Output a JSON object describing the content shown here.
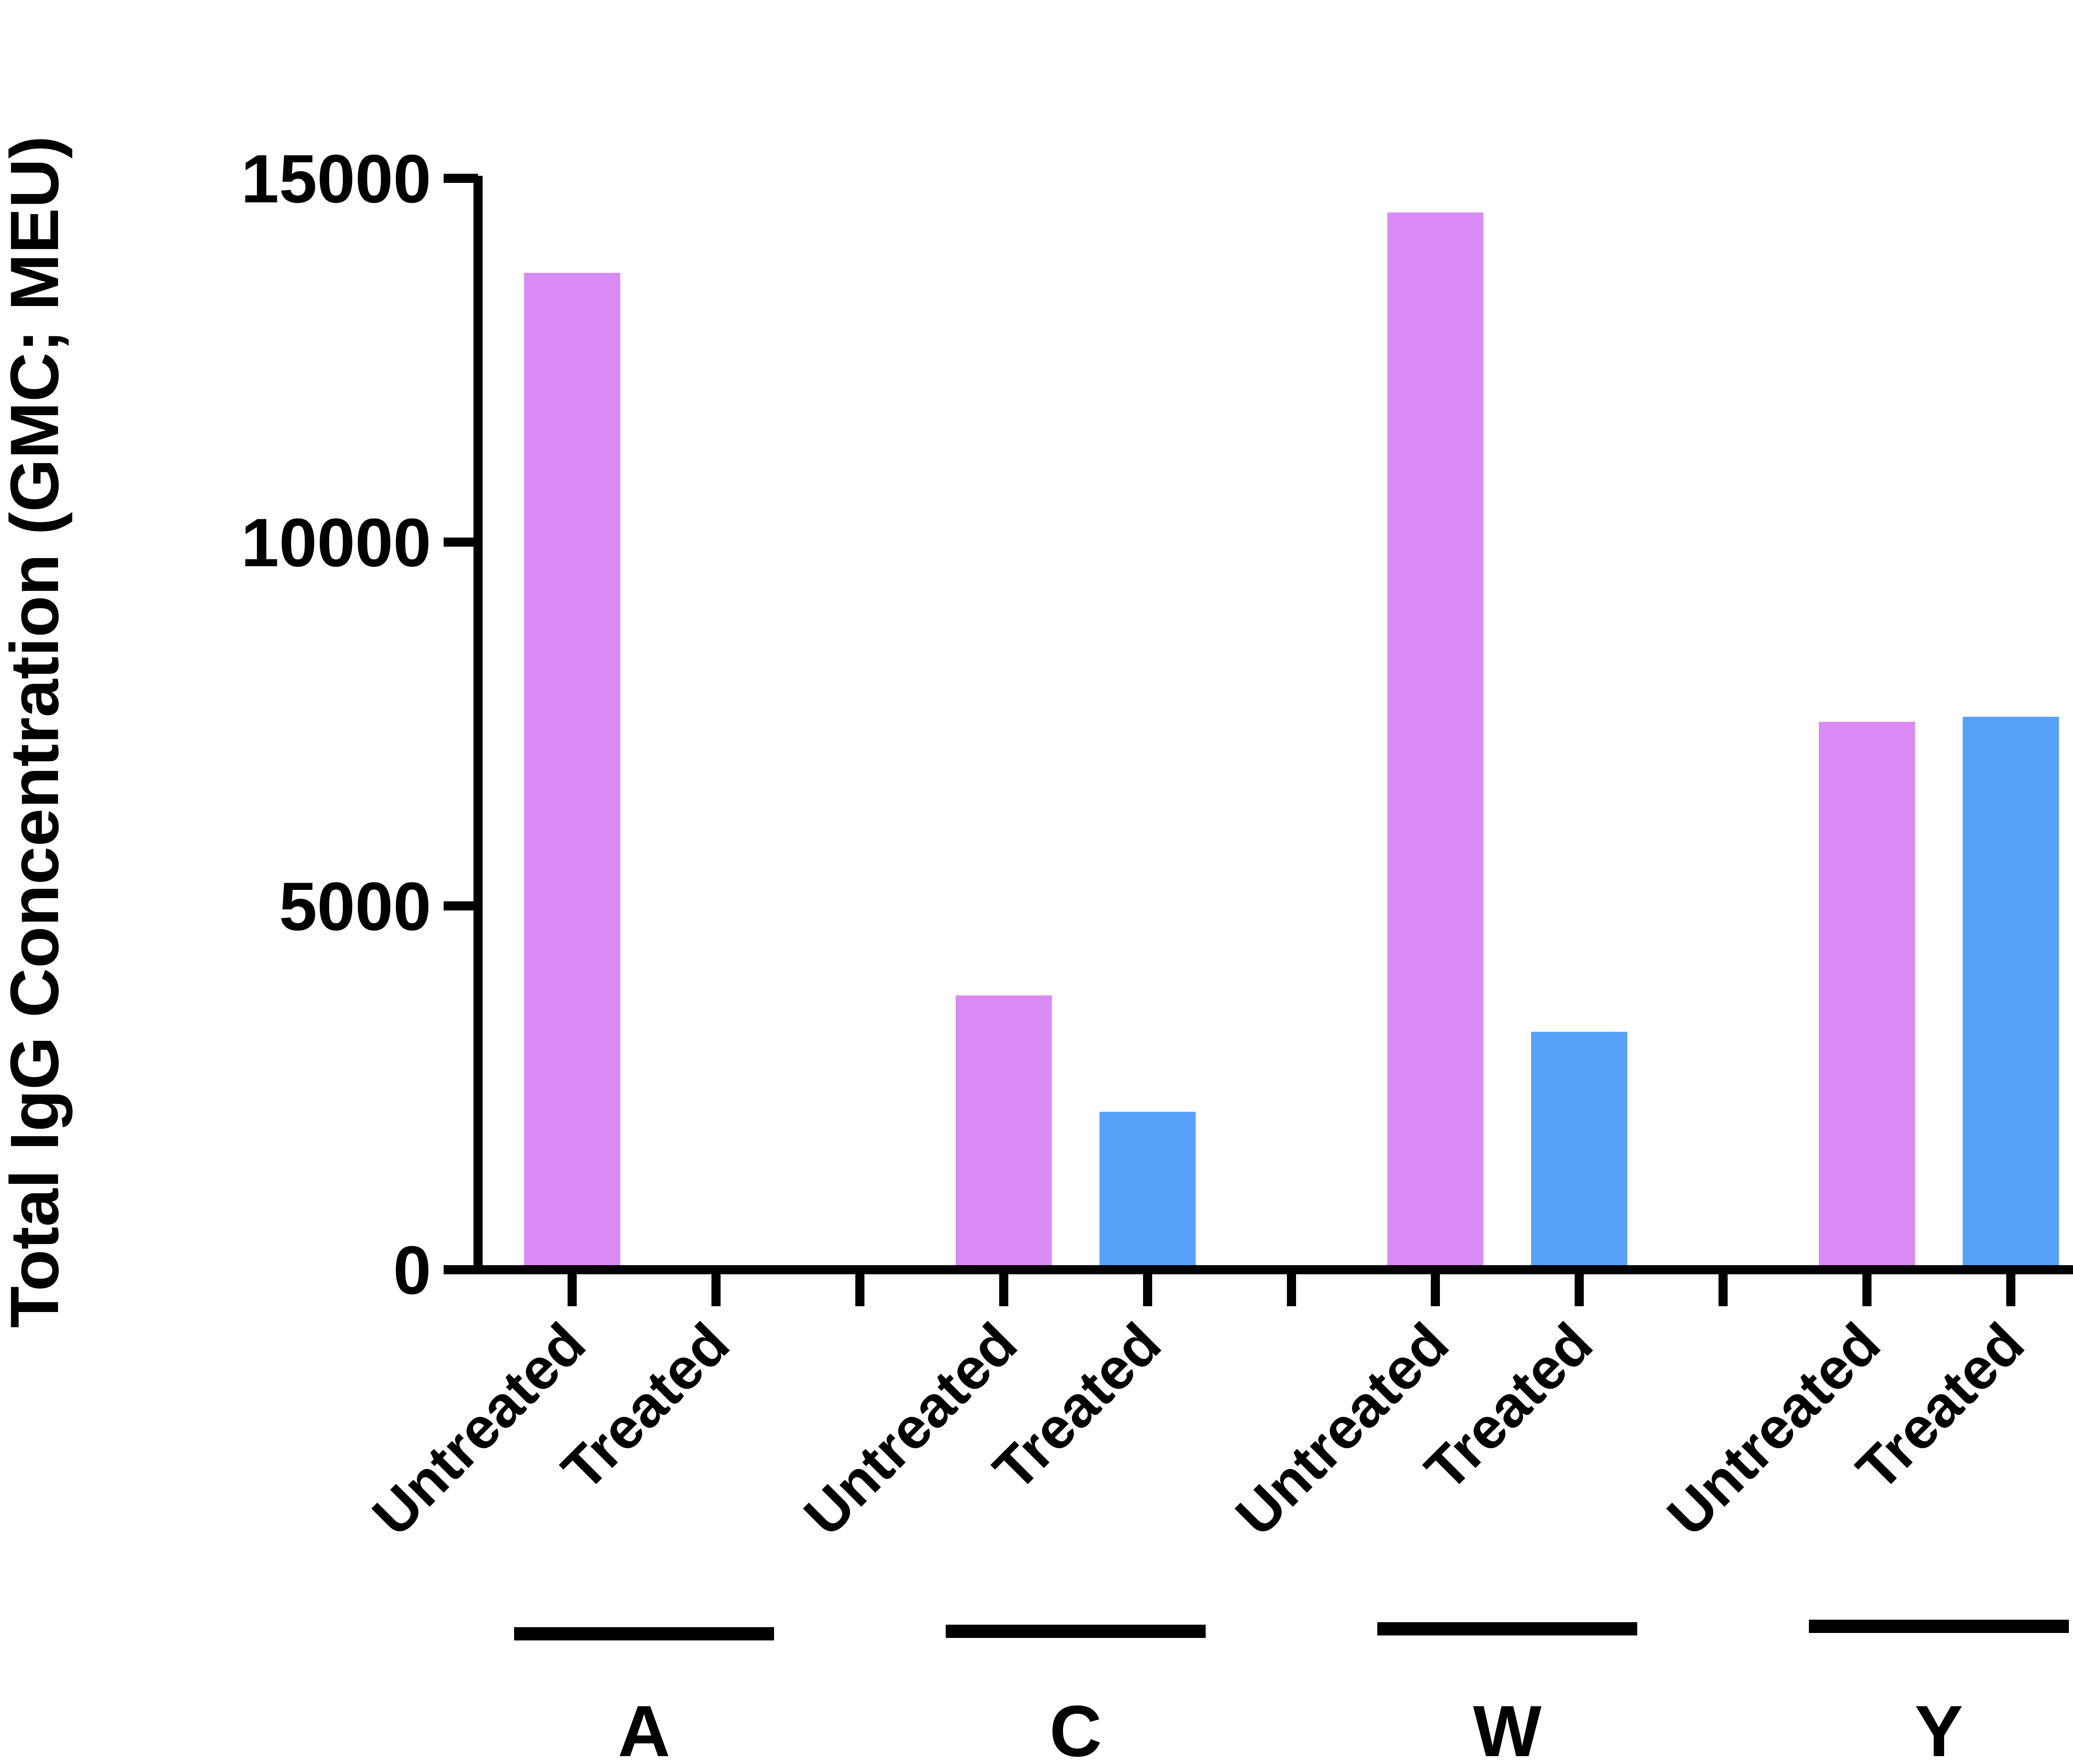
{
  "chart_data": {
    "type": "bar",
    "ylabel": "Total IgG Concentration (GMC; MEU)",
    "ylim": [
      0,
      15000
    ],
    "yticks": [
      0,
      5000,
      10000,
      15000
    ],
    "ytick_labels": [
      "0",
      "5000",
      "10000",
      "15000"
    ],
    "groups": [
      {
        "name": "A",
        "bars": [
          {
            "label": "Untreated",
            "value": 13700
          },
          {
            "label": "Treated",
            "value": 0
          }
        ]
      },
      {
        "name": "C",
        "bars": [
          {
            "label": "Untreated",
            "value": 3770
          },
          {
            "label": "Treated",
            "value": 2170
          }
        ]
      },
      {
        "name": "W",
        "bars": [
          {
            "label": "Untreated",
            "value": 14530
          },
          {
            "label": "Treated",
            "value": 3270
          }
        ]
      },
      {
        "name": "Y",
        "bars": [
          {
            "label": "Untreated",
            "value": 7530
          },
          {
            "label": "Treated",
            "value": 7600
          }
        ]
      }
    ],
    "colors": {
      "Untreated": "#d98af5",
      "Treated": "#57a1fa"
    },
    "grid": false,
    "legend": "none"
  }
}
